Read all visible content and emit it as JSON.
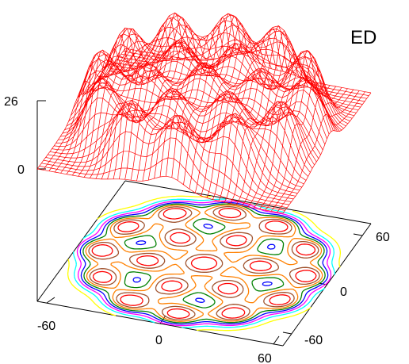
{
  "chart_data": {
    "type": "surface3d",
    "title": "ED",
    "z_axis": {
      "range": [
        0,
        26
      ],
      "tick_labels": [
        "26",
        "0"
      ]
    },
    "x_axis": {
      "range": [
        -60,
        60
      ],
      "tick_labels": [
        "-60",
        "0",
        "60"
      ]
    },
    "y_axis": {
      "range": [
        -60,
        60
      ],
      "tick_labels": [
        "-60",
        "0",
        "60"
      ]
    },
    "surface_color": "#ff0000",
    "contour_colors": [
      "#ffff00",
      "#00ffff",
      "#ff00ff",
      "#0000ff",
      "#008000",
      "#ff8000",
      "#a0522d",
      "#ff0000"
    ],
    "lattice": {
      "center_peak": [
        0,
        0
      ],
      "inner_ring": {
        "radius": 26,
        "count": 6
      },
      "outer_ring": {
        "radius": 50,
        "count": 12
      }
    }
  }
}
